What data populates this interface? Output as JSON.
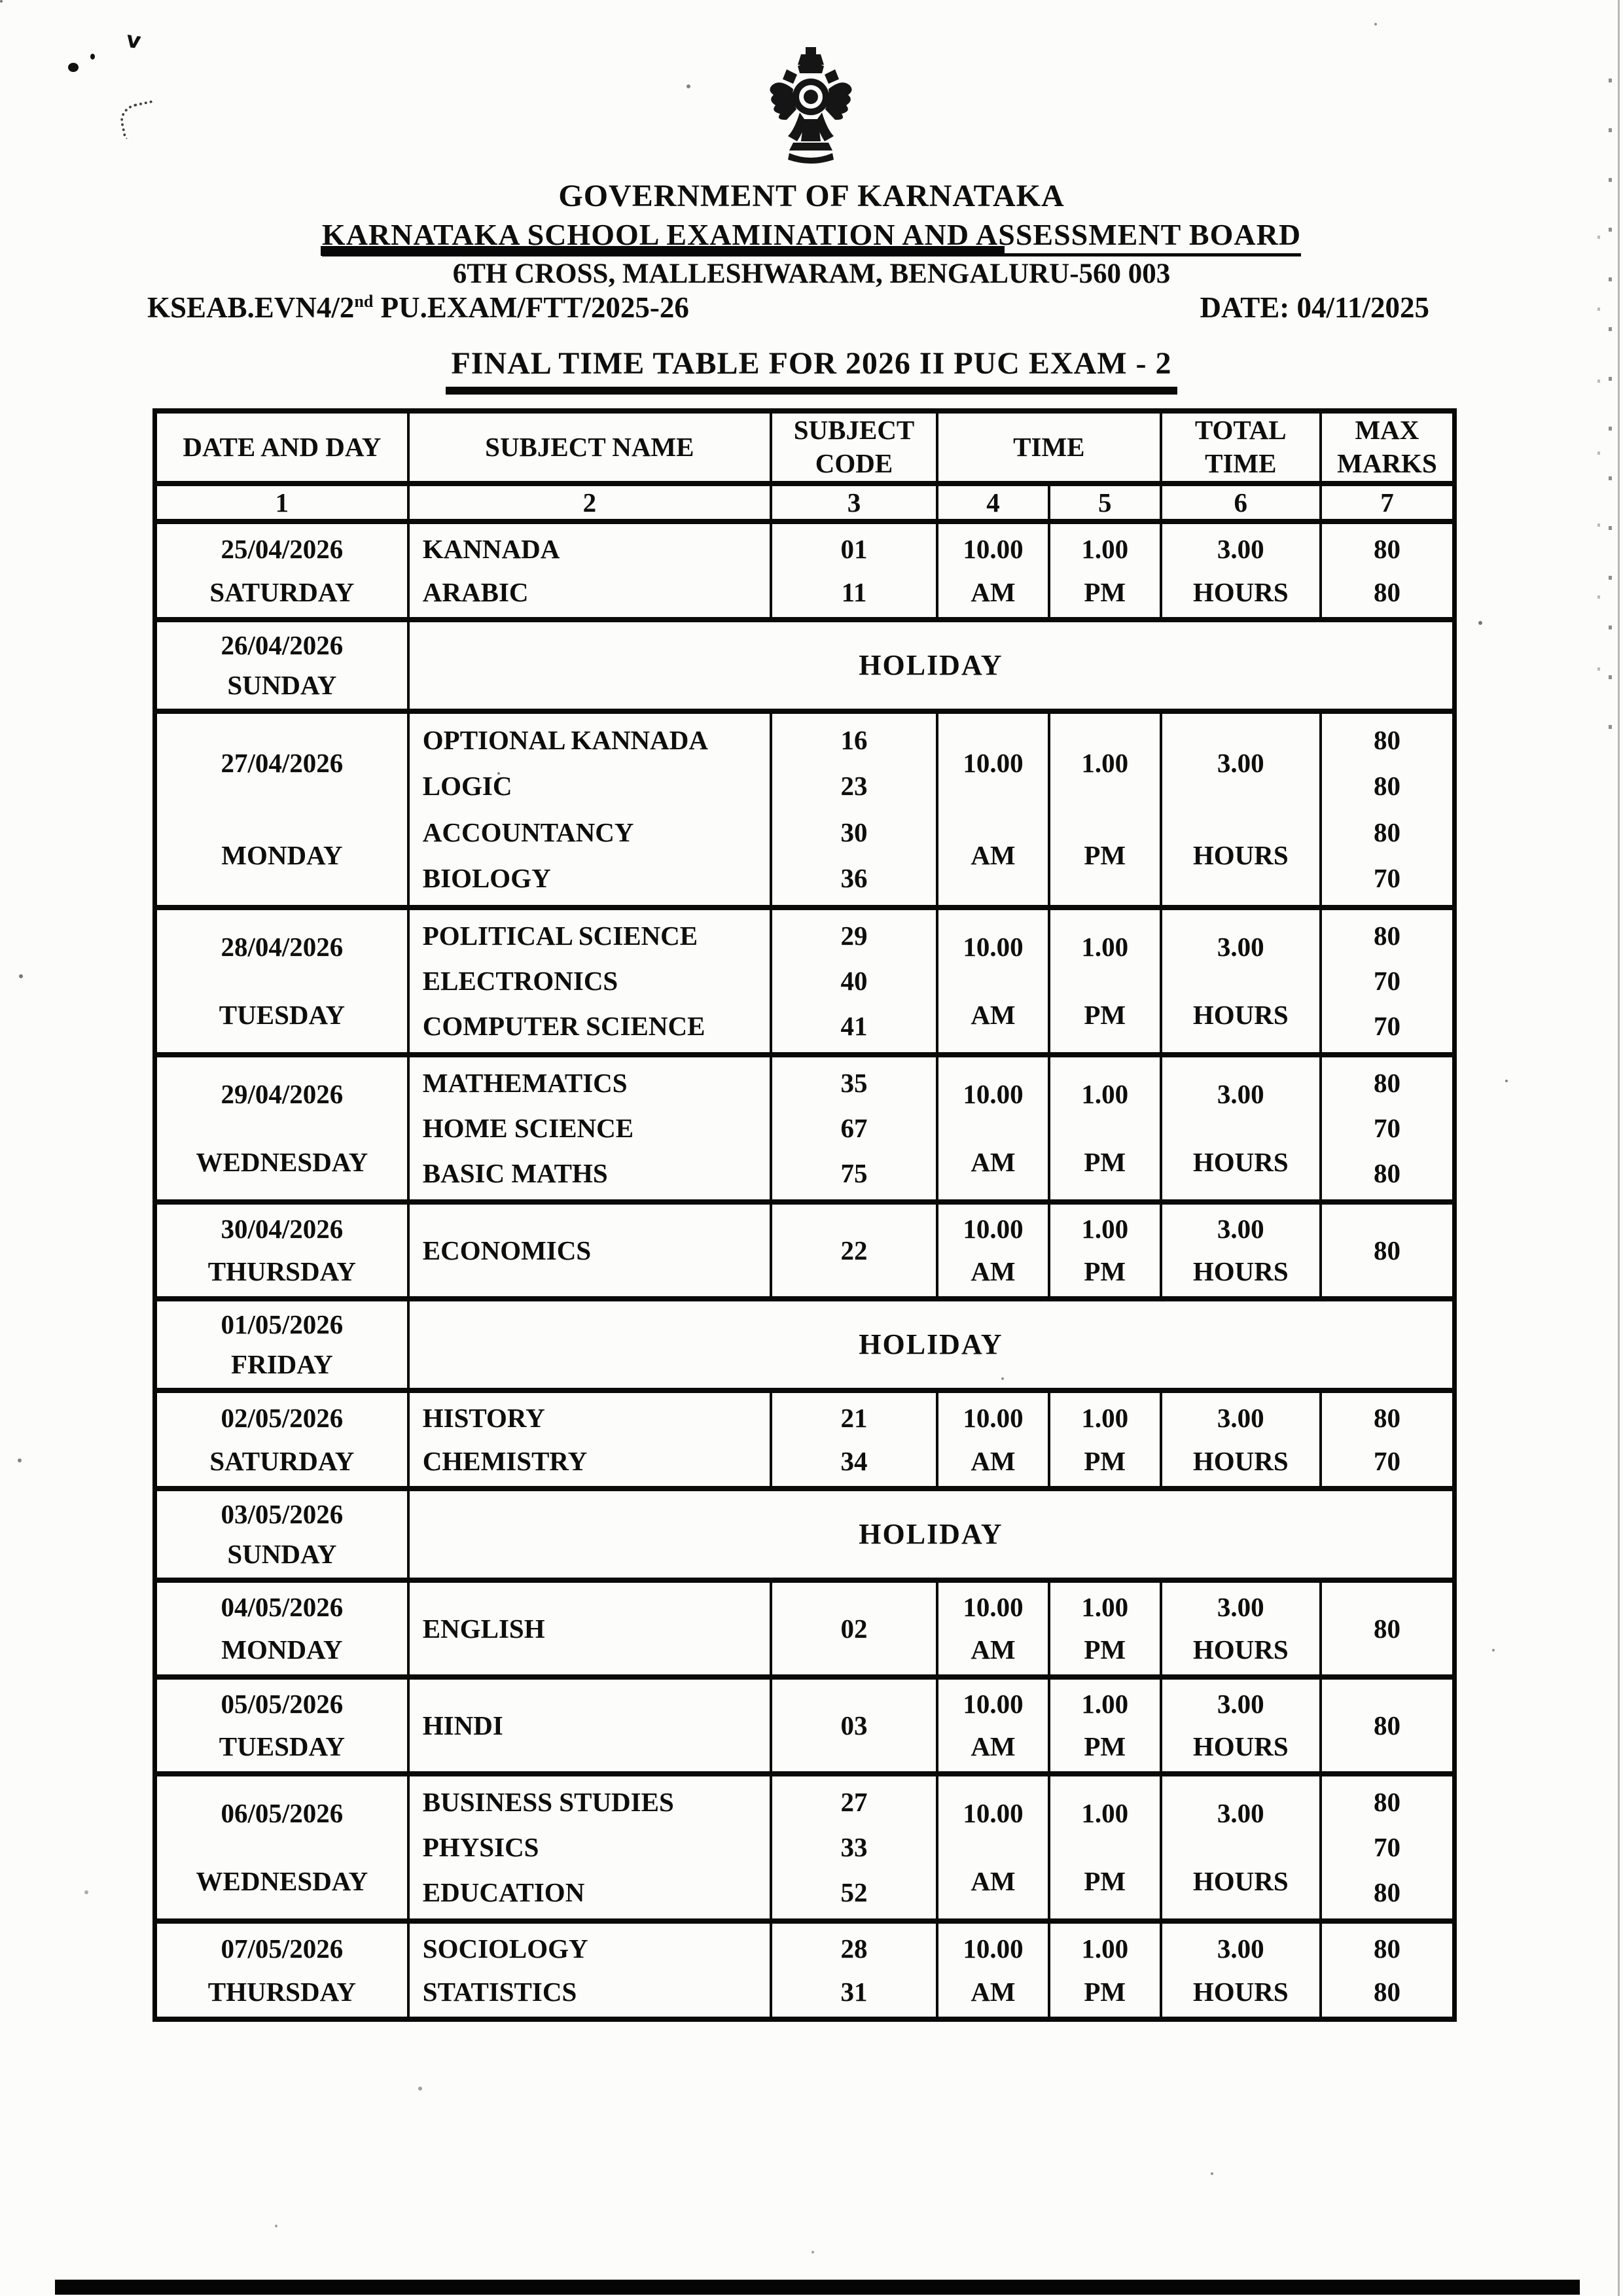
{
  "page": {
    "org": "GOVERNMENT OF KARNATAKA",
    "board": "KARNATAKA SCHOOL EXAMINATION AND ASSESSMENT BOARD",
    "address": "6TH CROSS, MALLESHWARAM, BENGALURU-560 003",
    "ref_prefix": "KSEAB.EVN4/2",
    "ref_sup": "nd",
    "ref_suffix": " PU.EXAM/FTT/2025-26",
    "date_label": "DATE: 04/11/2025",
    "title": "FINAL TIME TABLE FOR 2026 II PUC EXAM - 2",
    "emblem_icon": "karnataka-state-emblem"
  },
  "table": {
    "headers": [
      "DATE AND DAY",
      "SUBJECT NAME",
      "SUBJECT CODE",
      "TIME",
      "TOTAL TIME",
      "MAX MARKS"
    ],
    "column_numbers": [
      "1",
      "2",
      "3",
      "4",
      "5",
      "6",
      "7"
    ],
    "holiday_label": "HOLIDAY",
    "rows": [
      {
        "date": "25/04/2026",
        "day": "SATURDAY",
        "subjects": [
          {
            "name": "KANNADA",
            "code": "01",
            "marks": "80"
          },
          {
            "name": "ARABIC",
            "code": "11",
            "marks": "80"
          }
        ],
        "start": [
          "10.00",
          "AM"
        ],
        "end": [
          "1.00",
          "PM"
        ],
        "total": [
          "3.00",
          "HOURS"
        ]
      },
      {
        "date": "26/04/2026",
        "day": "SUNDAY",
        "holiday": true
      },
      {
        "date": "27/04/2026",
        "day": "MONDAY",
        "subjects": [
          {
            "name": "OPTIONAL KANNADA",
            "code": "16",
            "marks": "80"
          },
          {
            "name": "LOGIC",
            "code": "23",
            "marks": "80"
          },
          {
            "name": "ACCOUNTANCY",
            "code": "30",
            "marks": "80"
          },
          {
            "name": "BIOLOGY",
            "code": "36",
            "marks": "70"
          }
        ],
        "start": [
          "10.00",
          "AM"
        ],
        "end": [
          "1.00",
          "PM"
        ],
        "total": [
          "3.00",
          "HOURS"
        ]
      },
      {
        "date": "28/04/2026",
        "day": "TUESDAY",
        "subjects": [
          {
            "name": "POLITICAL SCIENCE",
            "code": "29",
            "marks": "80"
          },
          {
            "name": "ELECTRONICS",
            "code": "40",
            "marks": "70"
          },
          {
            "name": "COMPUTER SCIENCE",
            "code": "41",
            "marks": "70"
          }
        ],
        "start": [
          "10.00",
          "AM"
        ],
        "end": [
          "1.00",
          "PM"
        ],
        "total": [
          "3.00",
          "HOURS"
        ]
      },
      {
        "date": "29/04/2026",
        "day": "WEDNESDAY",
        "subjects": [
          {
            "name": "MATHEMATICS",
            "code": "35",
            "marks": "80"
          },
          {
            "name": "HOME SCIENCE",
            "code": "67",
            "marks": "70"
          },
          {
            "name": "BASIC MATHS",
            "code": "75",
            "marks": "80"
          }
        ],
        "start": [
          "10.00",
          "AM"
        ],
        "end": [
          "1.00",
          "PM"
        ],
        "total": [
          "3.00",
          "HOURS"
        ]
      },
      {
        "date": "30/04/2026",
        "day": "THURSDAY",
        "subjects": [
          {
            "name": "ECONOMICS",
            "code": "22",
            "marks": "80"
          }
        ],
        "start": [
          "10.00",
          "AM"
        ],
        "end": [
          "1.00",
          "PM"
        ],
        "total": [
          "3.00",
          "HOURS"
        ]
      },
      {
        "date": "01/05/2026",
        "day": "FRIDAY",
        "holiday": true
      },
      {
        "date": "02/05/2026",
        "day": "SATURDAY",
        "subjects": [
          {
            "name": "HISTORY",
            "code": "21",
            "marks": "80"
          },
          {
            "name": "CHEMISTRY",
            "code": "34",
            "marks": "70"
          }
        ],
        "start": [
          "10.00",
          "AM"
        ],
        "end": [
          "1.00",
          "PM"
        ],
        "total": [
          "3.00",
          "HOURS"
        ]
      },
      {
        "date": "03/05/2026",
        "day": "SUNDAY",
        "holiday": true
      },
      {
        "date": "04/05/2026",
        "day": "MONDAY",
        "subjects": [
          {
            "name": "ENGLISH",
            "code": "02",
            "marks": "80"
          }
        ],
        "start": [
          "10.00",
          "AM"
        ],
        "end": [
          "1.00",
          "PM"
        ],
        "total": [
          "3.00",
          "HOURS"
        ]
      },
      {
        "date": "05/05/2026",
        "day": "TUESDAY",
        "subjects": [
          {
            "name": "HINDI",
            "code": "03",
            "marks": "80"
          }
        ],
        "start": [
          "10.00",
          "AM"
        ],
        "end": [
          "1.00",
          "PM"
        ],
        "total": [
          "3.00",
          "HOURS"
        ]
      },
      {
        "date": "06/05/2026",
        "day": "WEDNESDAY",
        "subjects": [
          {
            "name": "BUSINESS STUDIES",
            "code": "27",
            "marks": "80"
          },
          {
            "name": "PHYSICS",
            "code": "33",
            "marks": "70"
          },
          {
            "name": "EDUCATION",
            "code": "52",
            "marks": "80"
          }
        ],
        "start": [
          "10.00",
          "AM"
        ],
        "end": [
          "1.00",
          "PM"
        ],
        "total": [
          "3.00",
          "HOURS"
        ]
      },
      {
        "date": "07/05/2026",
        "day": "THURSDAY",
        "subjects": [
          {
            "name": "SOCIOLOGY",
            "code": "28",
            "marks": "80"
          },
          {
            "name": "STATISTICS",
            "code": "31",
            "marks": "80"
          }
        ],
        "start": [
          "10.00",
          "AM"
        ],
        "end": [
          "1.00",
          "PM"
        ],
        "total": [
          "3.00",
          "HOURS"
        ]
      }
    ]
  }
}
